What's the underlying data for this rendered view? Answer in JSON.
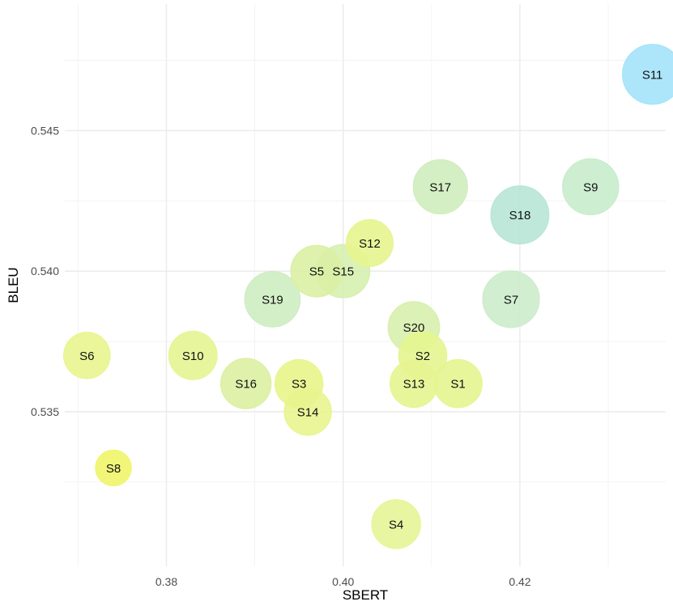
{
  "chart_data": {
    "type": "scatter",
    "xlabel": "SBERT",
    "ylabel": "BLEU",
    "xlim": [
      0.3685,
      0.4365
    ],
    "ylim": [
      0.5295,
      0.5495
    ],
    "x_ticks": [
      {
        "value": 0.38,
        "label": "0.38"
      },
      {
        "value": 0.4,
        "label": "0.40"
      },
      {
        "value": 0.42,
        "label": "0.42"
      }
    ],
    "y_ticks": [
      {
        "value": 0.535,
        "label": "0.535"
      },
      {
        "value": 0.54,
        "label": "0.540"
      },
      {
        "value": 0.545,
        "label": "0.545"
      }
    ],
    "grid": true,
    "legend": "none",
    "color_scale": {
      "low": "#f2f542",
      "high": "#5fd4fb"
    },
    "points": [
      {
        "label": "S1",
        "x": 0.413,
        "y": 0.536,
        "size": 0.533,
        "color": "#e4f590"
      },
      {
        "label": "S2",
        "x": 0.409,
        "y": 0.537,
        "size": 0.533,
        "color": "#e4f590"
      },
      {
        "label": "S3",
        "x": 0.395,
        "y": 0.536,
        "size": 0.527,
        "color": "#e8f58a"
      },
      {
        "label": "S4",
        "x": 0.406,
        "y": 0.531,
        "size": 0.557,
        "color": "#e6f598"
      },
      {
        "label": "S5",
        "x": 0.397,
        "y": 0.54,
        "size": 0.66,
        "color": "#daf0a4"
      },
      {
        "label": "S6",
        "x": 0.371,
        "y": 0.537,
        "size": 0.477,
        "color": "#e8f58e"
      },
      {
        "label": "S7",
        "x": 0.419,
        "y": 0.539,
        "size": 0.857,
        "color": "#cceccc"
      },
      {
        "label": "S8",
        "x": 0.374,
        "y": 0.533,
        "size": 0.2,
        "color": "#f0f56a"
      },
      {
        "label": "S9",
        "x": 0.428,
        "y": 0.543,
        "size": 0.833,
        "color": "#c8eccc"
      },
      {
        "label": "S10",
        "x": 0.383,
        "y": 0.537,
        "size": 0.54,
        "color": "#e4f592"
      },
      {
        "label": "S11",
        "x": 0.435,
        "y": 0.547,
        "size": 1.0,
        "color": "#a4e3fa"
      },
      {
        "label": "S12",
        "x": 0.403,
        "y": 0.541,
        "size": 0.493,
        "color": "#e6f58e"
      },
      {
        "label": "S13",
        "x": 0.408,
        "y": 0.536,
        "size": 0.517,
        "color": "#e6f590"
      },
      {
        "label": "S14",
        "x": 0.396,
        "y": 0.535,
        "size": 0.5,
        "color": "#e8f58e"
      },
      {
        "label": "S15",
        "x": 0.4,
        "y": 0.54,
        "size": 0.72,
        "color": "#d6efb0"
      },
      {
        "label": "S16",
        "x": 0.389,
        "y": 0.536,
        "size": 0.61,
        "color": "#dcf0a2"
      },
      {
        "label": "S17",
        "x": 0.411,
        "y": 0.543,
        "size": 0.757,
        "color": "#d0edbe"
      },
      {
        "label": "S18",
        "x": 0.42,
        "y": 0.542,
        "size": 0.917,
        "color": "#b8e6d6"
      },
      {
        "label": "S19",
        "x": 0.392,
        "y": 0.539,
        "size": 0.807,
        "color": "#ceedc2"
      },
      {
        "label": "S20",
        "x": 0.408,
        "y": 0.538,
        "size": 0.65,
        "color": "#d8efae"
      }
    ]
  }
}
